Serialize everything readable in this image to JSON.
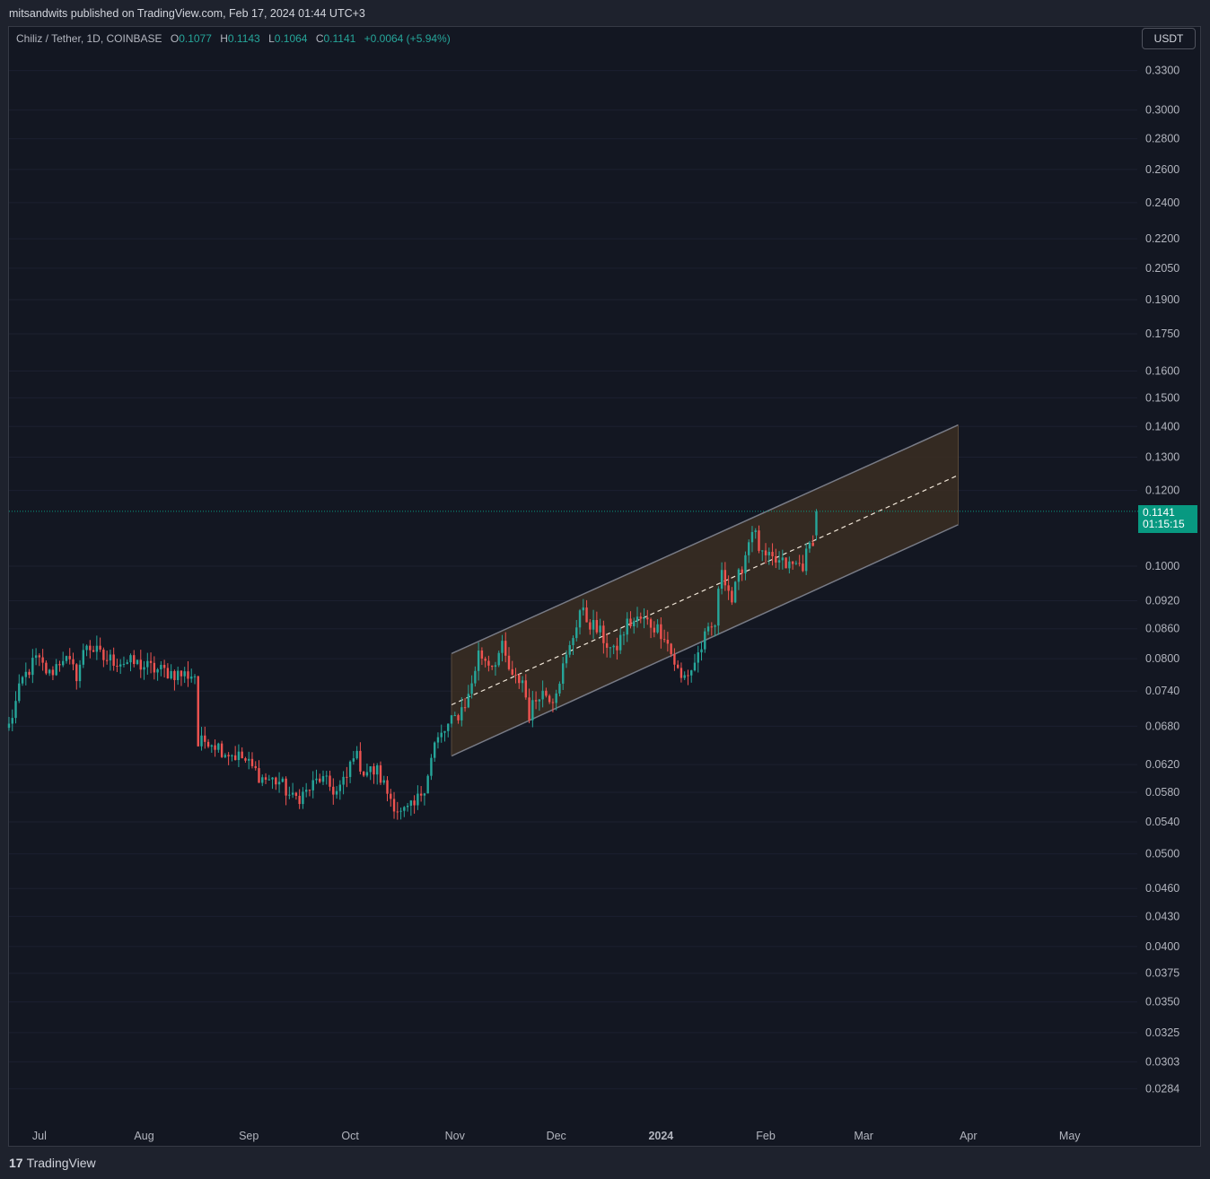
{
  "header": {
    "published_by": "mitsandwits published on TradingView.com, Feb 17, 2024 01:44 UTC+3"
  },
  "legend": {
    "symbol": "Chiliz / Tether, 1D, COINBASE",
    "o_label": "O",
    "o_value": "0.1077",
    "h_label": "H",
    "h_value": "0.1143",
    "l_label": "L",
    "l_value": "0.1064",
    "c_label": "C",
    "c_value": "0.1141",
    "change": "+0.0064 (+5.94%)"
  },
  "currency_button": "USDT",
  "last_price": {
    "price": "0.1141",
    "countdown": "01:15:15"
  },
  "footer": {
    "brand": "TradingView",
    "logo_glyph": "17"
  },
  "colors": {
    "up": "#26a69a",
    "down": "#ef5350",
    "background": "#131722",
    "channel_fill": "#3b2e22",
    "channel_line": "#787b86",
    "accent": "#089981"
  },
  "chart_data": {
    "type": "candlestick",
    "scale": "log",
    "y_tick_labels": [
      "0.3300",
      "0.3000",
      "0.2800",
      "0.2600",
      "0.2400",
      "0.2200",
      "0.2050",
      "0.1900",
      "0.1750",
      "0.1600",
      "0.1500",
      "0.1400",
      "0.1300",
      "0.1200",
      "0.1000",
      "0.0920",
      "0.0860",
      "0.0800",
      "0.0740",
      "0.0680",
      "0.0620",
      "0.0580",
      "0.0540",
      "0.0500",
      "0.0460",
      "0.0430",
      "0.0400",
      "0.0375",
      "0.0350",
      "0.0325",
      "0.0303",
      "0.0284"
    ],
    "x_tick_labels": [
      {
        "label": "Jul",
        "date": "2023-07-01",
        "bold": false
      },
      {
        "label": "Aug",
        "date": "2023-08-01",
        "bold": false
      },
      {
        "label": "Sep",
        "date": "2023-09-01",
        "bold": false
      },
      {
        "label": "Oct",
        "date": "2023-10-01",
        "bold": false
      },
      {
        "label": "Nov",
        "date": "2023-11-01",
        "bold": false
      },
      {
        "label": "Dec",
        "date": "2023-12-01",
        "bold": false
      },
      {
        "label": "2024",
        "date": "2024-01-01",
        "bold": true
      },
      {
        "label": "Feb",
        "date": "2024-02-01",
        "bold": false
      },
      {
        "label": "Mar",
        "date": "2024-03-01",
        "bold": false
      },
      {
        "label": "Apr",
        "date": "2024-04-01",
        "bold": false
      },
      {
        "label": "May",
        "date": "2024-05-01",
        "bold": false
      }
    ],
    "x_range": [
      "2023-06-22",
      "2024-05-21"
    ],
    "y_range": [
      0.0271,
      0.345
    ],
    "close_anchors": [
      [
        "2023-06-22",
        0.068
      ],
      [
        "2023-06-26",
        0.076
      ],
      [
        "2023-06-30",
        0.08
      ],
      [
        "2023-07-04",
        0.077
      ],
      [
        "2023-07-08",
        0.0805
      ],
      [
        "2023-07-12",
        0.077
      ],
      [
        "2023-07-15",
        0.083
      ],
      [
        "2023-07-20",
        0.08
      ],
      [
        "2023-07-25",
        0.0795
      ],
      [
        "2023-07-30",
        0.079
      ],
      [
        "2023-08-04",
        0.078
      ],
      [
        "2023-08-08",
        0.0775
      ],
      [
        "2023-08-12",
        0.077
      ],
      [
        "2023-08-16",
        0.077
      ],
      [
        "2023-08-17",
        0.065
      ],
      [
        "2023-08-20",
        0.066
      ],
      [
        "2023-08-25",
        0.064
      ],
      [
        "2023-08-30",
        0.063
      ],
      [
        "2023-09-05",
        0.06
      ],
      [
        "2023-09-10",
        0.0595
      ],
      [
        "2023-09-14",
        0.057
      ],
      [
        "2023-09-18",
        0.058
      ],
      [
        "2023-09-22",
        0.06
      ],
      [
        "2023-09-27",
        0.058
      ],
      [
        "2023-09-30",
        0.06
      ],
      [
        "2023-10-02",
        0.064
      ],
      [
        "2023-10-05",
        0.061
      ],
      [
        "2023-10-09",
        0.061
      ],
      [
        "2023-10-12",
        0.058
      ],
      [
        "2023-10-16",
        0.055
      ],
      [
        "2023-10-20",
        0.056
      ],
      [
        "2023-10-23",
        0.059
      ],
      [
        "2023-10-26",
        0.065
      ],
      [
        "2023-10-30",
        0.068
      ],
      [
        "2023-11-02",
        0.07
      ],
      [
        "2023-11-05",
        0.073
      ],
      [
        "2023-11-08",
        0.081
      ],
      [
        "2023-11-12",
        0.079
      ],
      [
        "2023-11-15",
        0.082
      ],
      [
        "2023-11-18",
        0.076
      ],
      [
        "2023-11-21",
        0.076
      ],
      [
        "2023-11-23",
        0.07
      ],
      [
        "2023-11-26",
        0.074
      ],
      [
        "2023-11-30",
        0.073
      ],
      [
        "2023-12-05",
        0.082
      ],
      [
        "2023-12-08",
        0.09
      ],
      [
        "2023-12-10",
        0.088
      ],
      [
        "2023-12-14",
        0.085
      ],
      [
        "2023-12-18",
        0.081
      ],
      [
        "2023-12-22",
        0.087
      ],
      [
        "2023-12-26",
        0.088
      ],
      [
        "2023-12-29",
        0.087
      ],
      [
        "2024-01-02",
        0.085
      ],
      [
        "2024-01-04",
        0.081
      ],
      [
        "2024-01-07",
        0.076
      ],
      [
        "2024-01-10",
        0.078
      ],
      [
        "2024-01-14",
        0.084
      ],
      [
        "2024-01-17",
        0.087
      ],
      [
        "2024-01-19",
        0.1
      ],
      [
        "2024-01-22",
        0.092
      ],
      [
        "2024-01-26",
        0.103
      ],
      [
        "2024-01-28",
        0.11
      ],
      [
        "2024-01-31",
        0.102
      ],
      [
        "2024-02-04",
        0.101
      ],
      [
        "2024-02-08",
        0.1
      ],
      [
        "2024-02-12",
        0.1005
      ],
      [
        "2024-02-15",
        0.107
      ],
      [
        "2024-02-16",
        0.1141
      ]
    ],
    "channel": {
      "start_date": "2023-10-31",
      "end_date": "2024-03-29",
      "upper": [
        0.081,
        0.1405
      ],
      "middle": [
        0.0716,
        0.1245
      ],
      "lower": [
        0.0633,
        0.1105
      ]
    },
    "last_price_line": 0.1141
  }
}
